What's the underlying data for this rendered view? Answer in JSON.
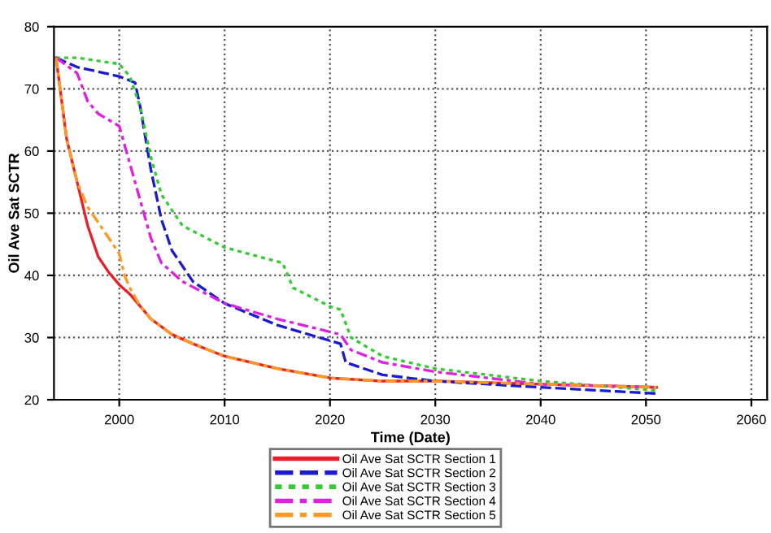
{
  "chart_data": {
    "type": "line",
    "xlabel": "Time (Date)",
    "ylabel": "Oil Ave Sat SCTR",
    "xlim": [
      1993.8,
      2061.5
    ],
    "ylim": [
      20,
      80
    ],
    "xticks": [
      2000,
      2010,
      2020,
      2030,
      2040,
      2050,
      2060
    ],
    "yticks": [
      20,
      30,
      40,
      50,
      60,
      70,
      80
    ],
    "grid": true,
    "legend": "bottom",
    "series": [
      {
        "name": "Oil Ave Sat SCTR Section 1",
        "color": "#e8202a",
        "line_style": "solid",
        "x": [
          1994,
          1995,
          1996,
          1997,
          1998,
          1999,
          2000,
          2001,
          2002,
          2003,
          2005,
          2007,
          2010,
          2015,
          2020,
          2025,
          2030,
          2040,
          2051
        ],
        "values": [
          75,
          62,
          55,
          48,
          43,
          40.5,
          38.5,
          37,
          35,
          33,
          30.5,
          29,
          27,
          25,
          23.5,
          23,
          23,
          22.5,
          22
        ]
      },
      {
        "name": "Oil Ave Sat SCTR Section 2",
        "color": "#1a1ad0",
        "line_style": "dashed",
        "x": [
          1994,
          1996,
          2000,
          2001.5,
          2002,
          2003,
          2004,
          2005,
          2007,
          2010,
          2015,
          2020,
          2021,
          2021.5,
          2025,
          2030,
          2040,
          2051
        ],
        "values": [
          75,
          73.5,
          72,
          71,
          67,
          57,
          49,
          44,
          39,
          35.5,
          32,
          29.5,
          29,
          26,
          24,
          23,
          22,
          21
        ]
      },
      {
        "name": "Oil Ave Sat SCTR Section 3",
        "color": "#33cc33",
        "line_style": "dotted",
        "x": [
          1994,
          1996,
          2000,
          2001,
          2002,
          2003,
          2004,
          2006,
          2010,
          2015.5,
          2016.5,
          2020,
          2021,
          2022,
          2025,
          2030,
          2040,
          2051
        ],
        "values": [
          75,
          75,
          74,
          72,
          67,
          59,
          53,
          48,
          44.5,
          42,
          38,
          35,
          34.5,
          30,
          27,
          25,
          23,
          21.5
        ]
      },
      {
        "name": "Oil Ave Sat SCTR Section 4",
        "color": "#e020e0",
        "line_style": "dashdot",
        "x": [
          1994,
          1996,
          1997,
          1998,
          2000,
          2001,
          2002,
          2003,
          2004,
          2006,
          2010,
          2015,
          2021,
          2022,
          2025,
          2030,
          2040,
          2051
        ],
        "values": [
          75,
          72.5,
          68,
          66,
          64,
          58,
          52,
          46,
          42,
          39,
          35.5,
          33,
          30.5,
          28,
          26,
          24.5,
          22.5,
          22
        ]
      },
      {
        "name": "Oil Ave Sat SCTR Section 5",
        "color": "#ff9922",
        "line_style": "dashdot",
        "x": [
          1994,
          1995,
          1996,
          1997,
          1999,
          2000,
          2000.5,
          2001,
          2002,
          2003,
          2005,
          2007,
          2010,
          2015,
          2020,
          2025,
          2030,
          2040,
          2051
        ],
        "values": [
          75,
          62,
          55,
          51,
          46,
          43.5,
          40,
          38,
          35,
          33,
          30.5,
          29,
          27,
          25,
          23.5,
          23,
          23,
          22.5,
          22
        ]
      }
    ]
  }
}
